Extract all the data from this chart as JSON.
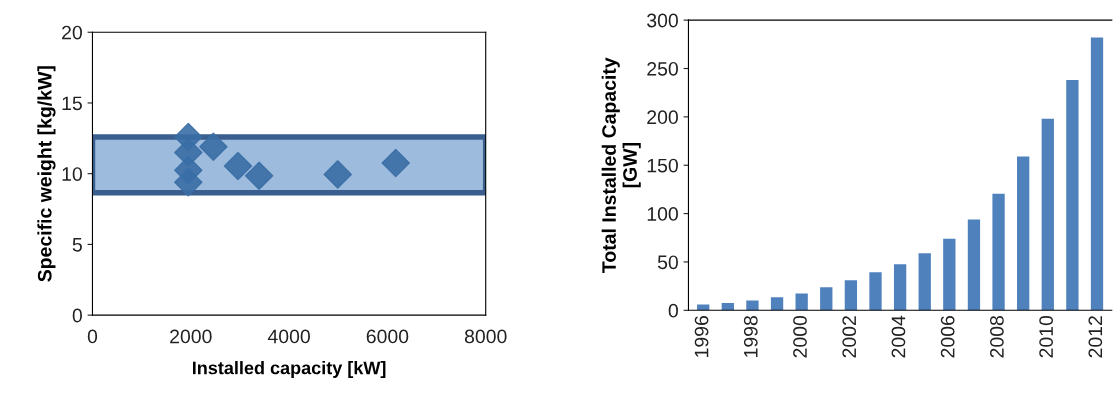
{
  "chart_data": [
    {
      "type": "scatter",
      "xlabel": "Installed capacity [kW]",
      "ylabel": "Specific weight [kg/kW]",
      "xlim": [
        0,
        8000
      ],
      "ylim": [
        0,
        20
      ],
      "xticks": [
        0,
        2000,
        4000,
        6000,
        8000
      ],
      "yticks": [
        0,
        5,
        10,
        15,
        20
      ],
      "grid": false,
      "legend": false,
      "marker": "diamond",
      "series": [
        {
          "color": "#3a6ea5",
          "x": [
            1950,
            1950,
            1950,
            1950,
            2460,
            2960,
            3390,
            4990,
            6170
          ],
          "values": [
            12.6,
            11.5,
            10.25,
            9.4,
            11.9,
            10.55,
            9.85,
            9.95,
            10.75
          ]
        }
      ],
      "bands": [
        {
          "axis": "y",
          "from": 8.65,
          "to": 12.6,
          "color": "#9dbbdd"
        }
      ]
    },
    {
      "type": "bar",
      "ylabel": "Total Installed Capacity\n[GW]",
      "categories": [
        "1996",
        null,
        "1998",
        null,
        "2000",
        null,
        "2002",
        null,
        "2004",
        null,
        "2006",
        null,
        "2008",
        null,
        "2010",
        null,
        "2012"
      ],
      "ylim": [
        0,
        300
      ],
      "yticks": [
        0,
        50,
        100,
        150,
        200,
        250,
        300
      ],
      "grid": false,
      "legend": false,
      "series": [
        {
          "color": "#4f81bd",
          "values": [
            6.1,
            7.6,
            10.2,
            13.6,
            17.4,
            23.9,
            31.1,
            39.4,
            47.6,
            59.1,
            74,
            93.9,
            120.6,
            159,
            198,
            238,
            282
          ]
        }
      ]
    }
  ]
}
